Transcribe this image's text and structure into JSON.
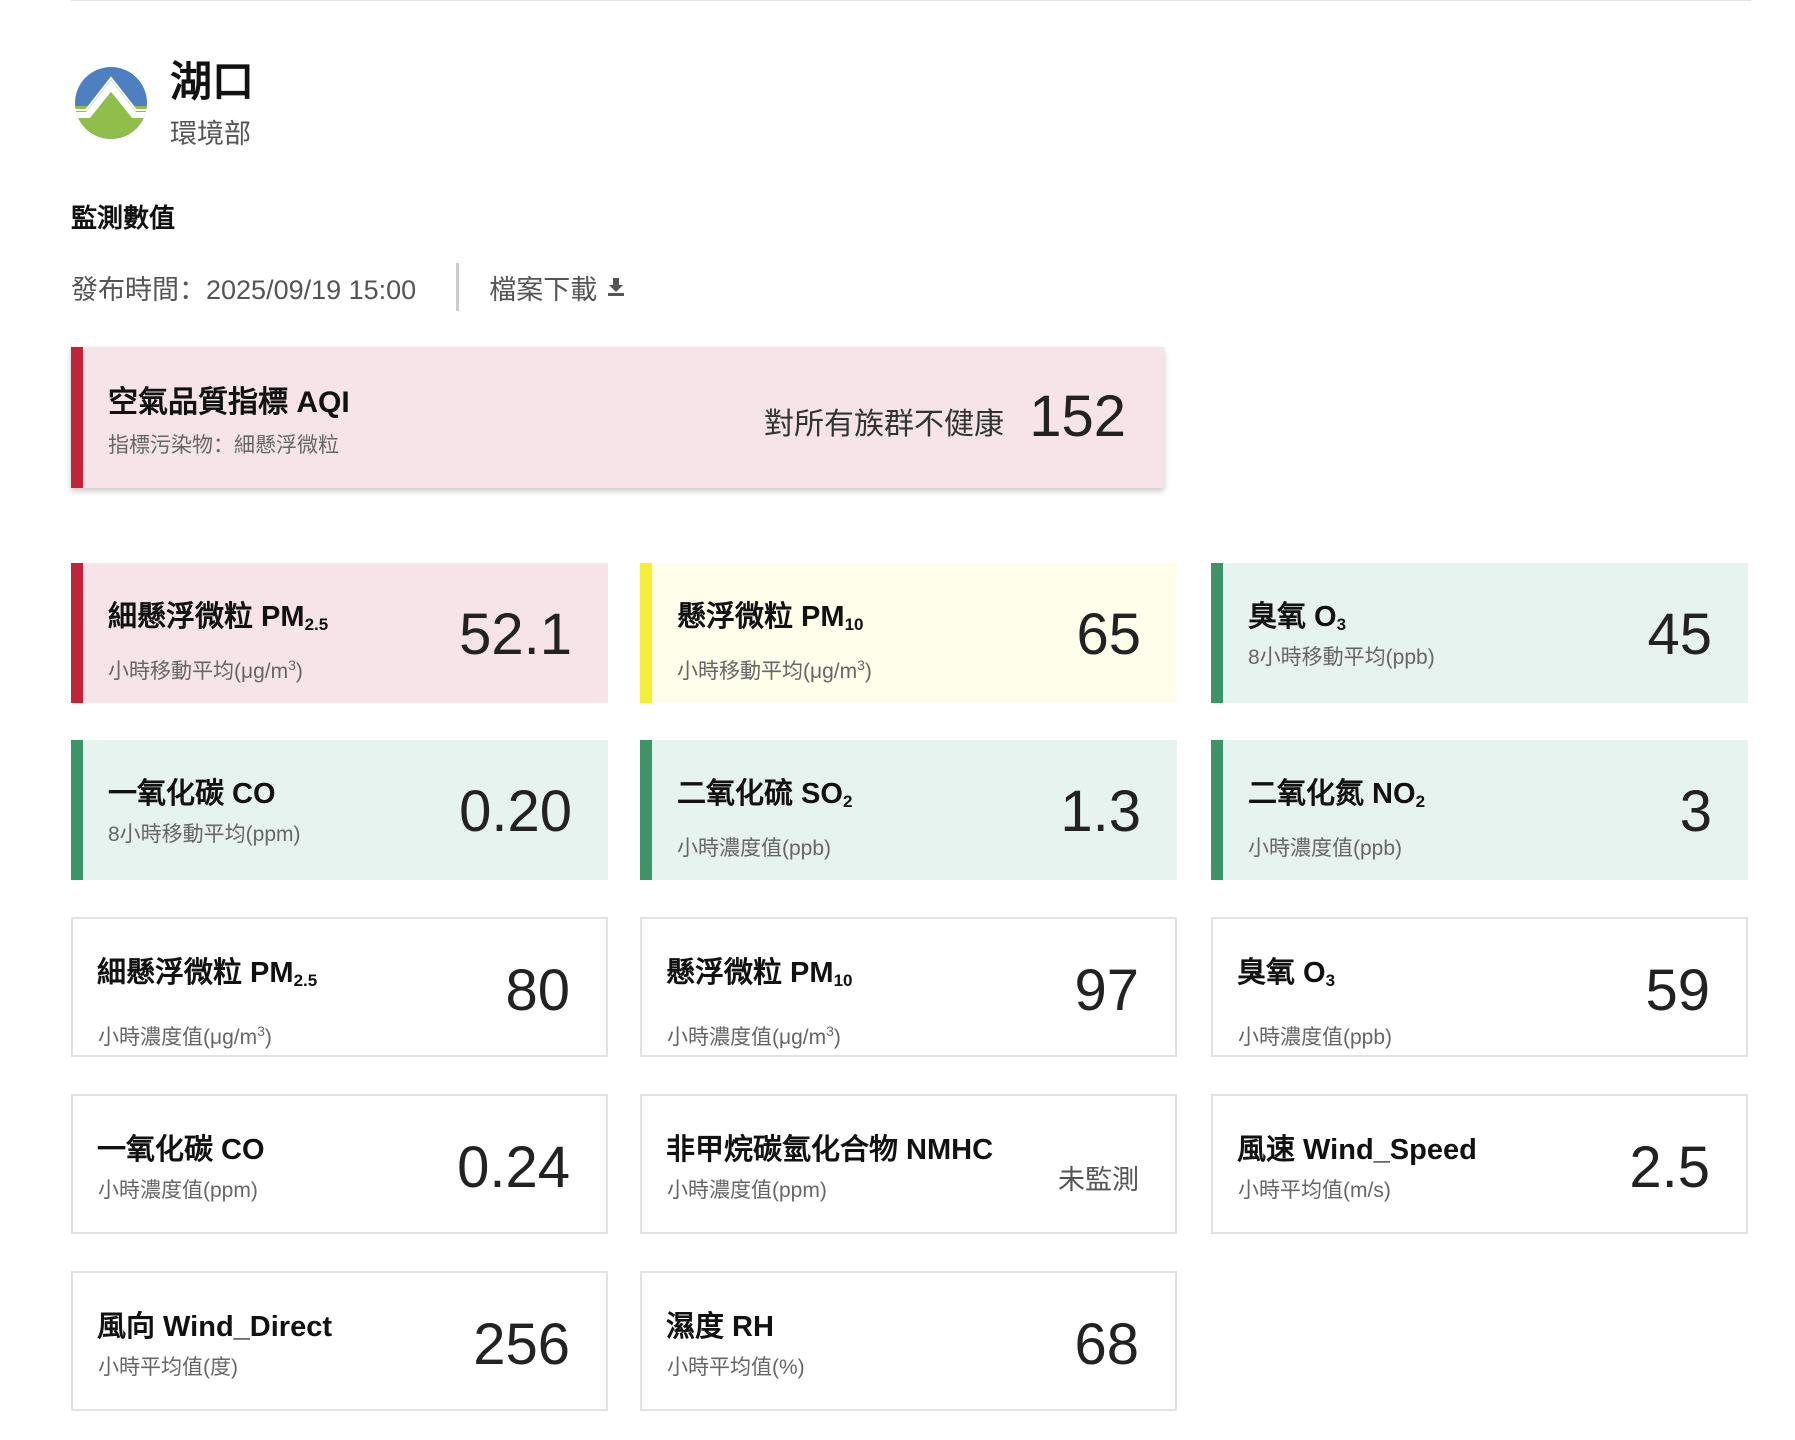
{
  "header": {
    "station": "湖口",
    "agency": "環境部",
    "logo_icon": "moenv-logo"
  },
  "section_title": "監測數值",
  "publish": {
    "label": "發布時間：2025/09/19 15:00",
    "download_label": "檔案下載",
    "download_icon": "download-icon"
  },
  "aqi": {
    "title": "空氣品質指標 AQI",
    "pollutant": "指標污染物：細懸浮微粒",
    "status": "對所有族群不健康",
    "value": "152",
    "color": "#c0243b",
    "bg": "#f6e4e8"
  },
  "cards": [
    {
      "name": "細懸浮微粒 PM",
      "sub": "2.5",
      "desc": "小時移動平均(μg/m",
      "sup": "3",
      "end": ")",
      "value": "52.1",
      "color": "#c0243b",
      "bg": "#f6e4e8"
    },
    {
      "name": "懸浮微粒 PM",
      "sub": "10",
      "desc": "小時移動平均(μg/m",
      "sup": "3",
      "end": ")",
      "value": "65",
      "color": "#f5ee3a",
      "bg": "#fefeea"
    },
    {
      "name": "臭氧 O",
      "sub": "3",
      "desc": "8小時移動平均(ppb)",
      "value": "45",
      "color": "#3f9467",
      "bg": "#e7f3ee"
    },
    {
      "name": "一氧化碳 CO",
      "desc": "8小時移動平均(ppm)",
      "value": "0.20",
      "color": "#3f9467",
      "bg": "#e7f3ee"
    },
    {
      "name": "二氧化硫 SO",
      "sub": "2",
      "desc": "小時濃度值(ppb)",
      "value": "1.3",
      "color": "#3f9467",
      "bg": "#e7f3ee"
    },
    {
      "name": "二氧化氮 NO",
      "sub": "2",
      "desc": "小時濃度值(ppb)",
      "value": "3",
      "color": "#3f9467",
      "bg": "#e7f3ee"
    },
    {
      "name": "細懸浮微粒 PM",
      "sub": "2.5",
      "desc": "小時濃度值(μg/m",
      "sup": "3",
      "end": ")",
      "value": "80"
    },
    {
      "name": "懸浮微粒 PM",
      "sub": "10",
      "desc": "小時濃度值(μg/m",
      "sup": "3",
      "end": ")",
      "value": "97"
    },
    {
      "name": "臭氧 O",
      "sub": "3",
      "desc": "小時濃度值(ppb)",
      "value": "59"
    },
    {
      "name": "一氧化碳 CO",
      "desc": "小時濃度值(ppm)",
      "value": "0.24"
    },
    {
      "name": "非甲烷碳氫化合物 NMHC",
      "desc": "小時濃度值(ppm)",
      "value": "未監測"
    },
    {
      "name": "風速 Wind_Speed",
      "desc": "小時平均值(m/s)",
      "value": "2.5"
    },
    {
      "name": "風向 Wind_Direct",
      "desc": "小時平均值(度)",
      "value": "256"
    },
    {
      "name": "濕度 RH",
      "desc": "小時平均值(%)",
      "value": "68"
    }
  ]
}
